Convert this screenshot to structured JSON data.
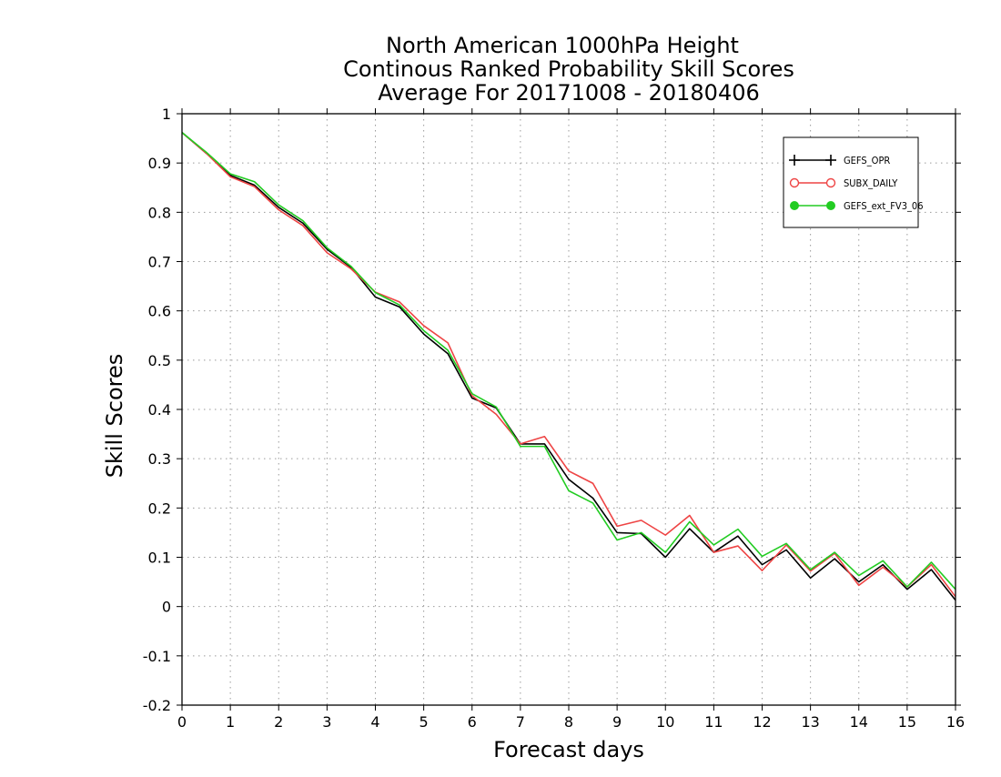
{
  "chart_data": {
    "type": "line",
    "title_lines": [
      "North American 1000hPa Height",
      "Continous Ranked Probability Skill Scores",
      "Average For 20171008 - 20180406"
    ],
    "xlabel": "Forecast days",
    "ylabel": "Skill Scores",
    "xlim": [
      0,
      16
    ],
    "ylim": [
      -0.2,
      1
    ],
    "x_ticks": [
      0,
      1,
      2,
      3,
      4,
      5,
      6,
      7,
      8,
      9,
      10,
      11,
      12,
      13,
      14,
      15,
      16
    ],
    "x_tick_labels": [
      "0",
      "1",
      "2",
      "3",
      "4",
      "5",
      "6",
      "7",
      "8",
      "9",
      "10",
      "11",
      "12",
      "13",
      "14",
      "15",
      "16"
    ],
    "y_ticks": [
      -0.2,
      -0.1,
      0,
      0.1,
      0.2,
      0.3,
      0.4,
      0.5,
      0.6,
      0.7,
      0.8,
      0.9,
      1
    ],
    "y_tick_labels": [
      "-0.2",
      "-0.1",
      "0",
      "0.1",
      "0.2",
      "0.3",
      "0.4",
      "0.5",
      "0.6",
      "0.7",
      "0.8",
      "0.9",
      "1"
    ],
    "grid": true,
    "legend_position": "top-right",
    "x": [
      0,
      0.5,
      1,
      1.5,
      2,
      2.5,
      3,
      3.5,
      4,
      4.5,
      5,
      5.5,
      6,
      6.5,
      7,
      7.5,
      8,
      8.5,
      9,
      9.5,
      10,
      10.5,
      11,
      11.5,
      12,
      12.5,
      13,
      13.5,
      14,
      14.5,
      15,
      15.5,
      16
    ],
    "series": [
      {
        "name": "GEFS_OPR",
        "color": "#000000",
        "marker": "plus",
        "values": [
          0.962,
          0.92,
          0.875,
          0.855,
          0.81,
          0.778,
          0.725,
          0.688,
          0.628,
          0.608,
          0.553,
          0.513,
          0.423,
          0.403,
          0.33,
          0.33,
          0.258,
          0.22,
          0.15,
          0.148,
          0.1,
          0.158,
          0.11,
          0.143,
          0.085,
          0.115,
          0.058,
          0.097,
          0.05,
          0.085,
          0.035,
          0.075,
          0.013
        ]
      },
      {
        "name": "SUBX_DAILY",
        "color": "#ee4444",
        "marker": "circle-open",
        "values": [
          0.962,
          0.92,
          0.872,
          0.852,
          0.805,
          0.773,
          0.718,
          0.685,
          0.638,
          0.618,
          0.57,
          0.535,
          0.428,
          0.39,
          0.33,
          0.345,
          0.275,
          0.25,
          0.163,
          0.175,
          0.145,
          0.185,
          0.11,
          0.123,
          0.073,
          0.125,
          0.072,
          0.108,
          0.043,
          0.08,
          0.04,
          0.085,
          0.02
        ]
      },
      {
        "name": "GEFS_ext_FV3_06",
        "color": "#22cc22",
        "marker": "circle-filled",
        "values": [
          0.962,
          0.922,
          0.878,
          0.862,
          0.815,
          0.783,
          0.728,
          0.69,
          0.637,
          0.612,
          0.56,
          0.52,
          0.432,
          0.405,
          0.325,
          0.325,
          0.235,
          0.21,
          0.135,
          0.15,
          0.11,
          0.172,
          0.125,
          0.157,
          0.102,
          0.128,
          0.075,
          0.11,
          0.063,
          0.093,
          0.04,
          0.09,
          0.035
        ]
      }
    ]
  }
}
